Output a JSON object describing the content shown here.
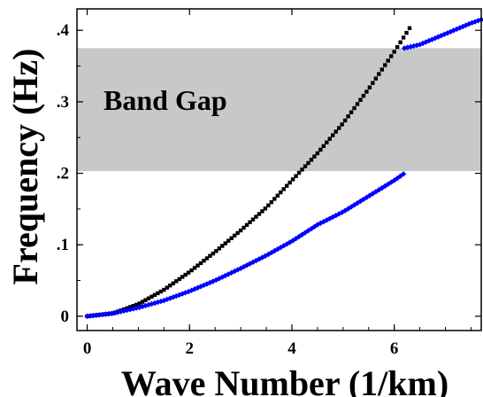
{
  "chart_data": {
    "type": "scatter",
    "xlabel": "Wave Number (1/km)",
    "ylabel": "Frequency (Hz)",
    "xlim": [
      -0.2,
      7.7
    ],
    "ylim": [
      -0.02,
      0.43
    ],
    "x_ticks": [
      0,
      2,
      4,
      6
    ],
    "x_tick_labels": [
      "0",
      "2",
      "4",
      "6"
    ],
    "y_ticks": [
      0,
      0.1,
      0.2,
      0.3,
      0.4
    ],
    "y_tick_labels": [
      "0",
      ".1",
      ".2",
      ".3",
      ".4"
    ],
    "grid": false,
    "band_gap": {
      "label": "Band Gap",
      "y_range": [
        0.203,
        0.375
      ],
      "color": "#c8c8c8"
    },
    "series": [
      {
        "color": "#000000",
        "marker": "square",
        "x": [
          0,
          0.5,
          1.0,
          1.5,
          2.0,
          2.5,
          3.0,
          3.5,
          4.0,
          4.5,
          5.0,
          5.5,
          6.0,
          6.3
        ],
        "y": [
          0,
          0.004,
          0.017,
          0.037,
          0.062,
          0.09,
          0.12,
          0.152,
          0.19,
          0.228,
          0.27,
          0.318,
          0.37,
          0.403
        ]
      },
      {
        "color": "#0000ff",
        "marker": "diamond",
        "x": [
          0,
          0.5,
          1.0,
          1.5,
          2.0,
          2.5,
          3.0,
          3.5,
          4.0,
          4.5,
          5.0,
          5.5,
          6.0,
          6.2
        ],
        "y": [
          0,
          0.004,
          0.012,
          0.022,
          0.035,
          0.05,
          0.067,
          0.085,
          0.105,
          0.128,
          0.146,
          0.168,
          0.19,
          0.2
        ]
      },
      {
        "color": "#0000ff",
        "marker": "diamond",
        "x": [
          6.2,
          6.5,
          7.0,
          7.5,
          7.7
        ],
        "y": [
          0.375,
          0.38,
          0.395,
          0.41,
          0.415
        ]
      }
    ]
  }
}
